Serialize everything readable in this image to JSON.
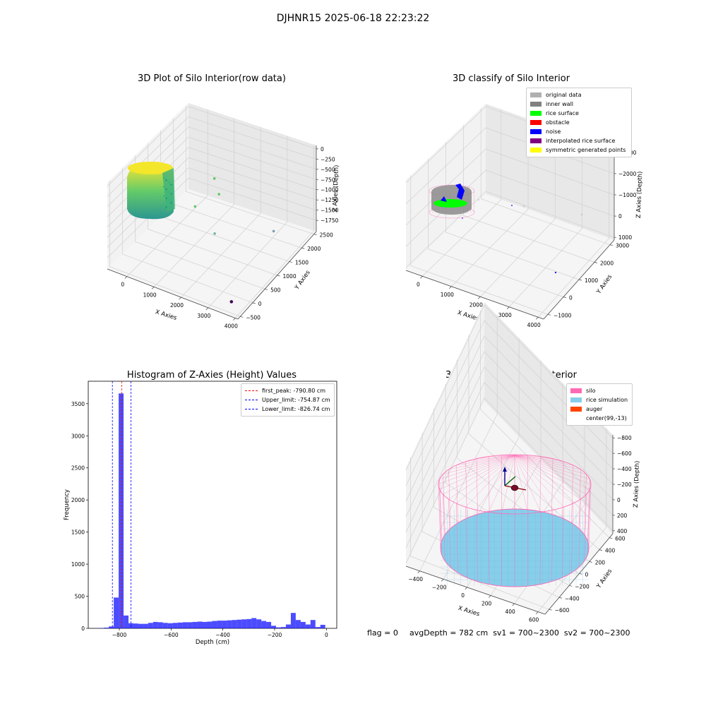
{
  "suptitle": "DJHNR15 2025-06-18 22:23:22",
  "footer": {
    "flag": "flag = 0",
    "avg": "avgDepth = 782 cm  sv1 = 700~2300  sv2 = 700~2300"
  },
  "chart_data": [
    {
      "type": "scatter",
      "title": "3D Plot of Silo Interior(row data)",
      "xlabel": "X Axies",
      "ylabel": "Y Axies",
      "zlabel": "Z Axies (Depth)",
      "xticks": [
        "0",
        "1000",
        "2000",
        "3000",
        "4000"
      ],
      "yticks": [
        "−500",
        "0",
        "500",
        "1000",
        "1500",
        "2000",
        "2500"
      ],
      "zticks": [
        "0",
        "−250",
        "−500",
        "−750",
        "−1000",
        "−1250",
        "−1500",
        "−1750"
      ],
      "colormap": [
        "#440154",
        "#21918c",
        "#5ec962",
        "#fde725"
      ],
      "points": [
        {
          "x": 3900,
          "y": -400,
          "z": -1750
        },
        {
          "x": 900,
          "y": 2400,
          "z": -1150
        },
        {
          "x": 1500,
          "y": 1900,
          "z": -1100
        },
        {
          "x": 2200,
          "y": 900,
          "z": -1300
        },
        {
          "x": 3500,
          "y": 1900,
          "z": -1550
        },
        {
          "x": 800,
          "y": 1700,
          "z": -1450
        }
      ]
    },
    {
      "type": "scatter",
      "title": "3D classify of Silo Interior",
      "xlabel": "X Axies",
      "ylabel": "Y Axies",
      "zlabel": "Z Axies (Depth)",
      "xticks": [
        "0",
        "1000",
        "2000",
        "3000",
        "4000"
      ],
      "yticks": [
        "−1000",
        "0",
        "1000",
        "2000",
        "3000"
      ],
      "zticks": [
        "1000",
        "0",
        "−1000",
        "−2000",
        "−3000"
      ],
      "legend": [
        {
          "label": "original data",
          "color": "#b0b0b0"
        },
        {
          "label": "inner wall",
          "color": "#808080"
        },
        {
          "label": "rice surface",
          "color": "#00ff00"
        },
        {
          "label": "obstacle",
          "color": "#ff0000"
        },
        {
          "label": "noise",
          "color": "#0000ff"
        },
        {
          "label": "interpolated rice surface",
          "color": "#800080"
        },
        {
          "label": "symmetric generated points",
          "color": "#ffff00"
        }
      ],
      "legend_loc": "upper right"
    },
    {
      "type": "bar",
      "title": "Histogram of Z-Axies (Height) Values",
      "xlabel": "Depth (cm)",
      "ylabel": "Frequency",
      "xlim": [
        -920,
        40
      ],
      "ylim": [
        0,
        3850
      ],
      "xticks": [
        -800,
        -600,
        -400,
        -200,
        0
      ],
      "yticks": [
        0,
        500,
        1000,
        1500,
        2000,
        2500,
        3000,
        3500
      ],
      "bar_color": "#0000ff",
      "bin_width": 19,
      "bins": [
        {
          "x": -869,
          "count": 5
        },
        {
          "x": -850,
          "count": 10
        },
        {
          "x": -831,
          "count": 30
        },
        {
          "x": -812,
          "count": 480
        },
        {
          "x": -793,
          "count": 3660
        },
        {
          "x": -774,
          "count": 200
        },
        {
          "x": -755,
          "count": 80
        },
        {
          "x": -736,
          "count": 75
        },
        {
          "x": -717,
          "count": 70
        },
        {
          "x": -698,
          "count": 70
        },
        {
          "x": -679,
          "count": 85
        },
        {
          "x": -660,
          "count": 100
        },
        {
          "x": -641,
          "count": 95
        },
        {
          "x": -622,
          "count": 85
        },
        {
          "x": -603,
          "count": 80
        },
        {
          "x": -584,
          "count": 85
        },
        {
          "x": -565,
          "count": 90
        },
        {
          "x": -546,
          "count": 95
        },
        {
          "x": -527,
          "count": 95
        },
        {
          "x": -508,
          "count": 100
        },
        {
          "x": -489,
          "count": 105
        },
        {
          "x": -470,
          "count": 100
        },
        {
          "x": -451,
          "count": 105
        },
        {
          "x": -432,
          "count": 115
        },
        {
          "x": -413,
          "count": 120
        },
        {
          "x": -394,
          "count": 120
        },
        {
          "x": -375,
          "count": 125
        },
        {
          "x": -356,
          "count": 130
        },
        {
          "x": -337,
          "count": 135
        },
        {
          "x": -318,
          "count": 140
        },
        {
          "x": -299,
          "count": 145
        },
        {
          "x": -280,
          "count": 160
        },
        {
          "x": -261,
          "count": 140
        },
        {
          "x": -242,
          "count": 115
        },
        {
          "x": -223,
          "count": 100
        },
        {
          "x": -204,
          "count": 40
        },
        {
          "x": -185,
          "count": 15
        },
        {
          "x": -166,
          "count": 20
        },
        {
          "x": -147,
          "count": 60
        },
        {
          "x": -128,
          "count": 240
        },
        {
          "x": -109,
          "count": 130
        },
        {
          "x": -90,
          "count": 100
        },
        {
          "x": -71,
          "count": 60
        },
        {
          "x": -52,
          "count": 130
        },
        {
          "x": -33,
          "count": 20
        },
        {
          "x": -14,
          "count": 55
        }
      ],
      "vlines": [
        {
          "label": "first_peak: -790.80 cm",
          "x": -790.8,
          "color": "#ff0000"
        },
        {
          "label": "Upper_limit: -754.87 cm",
          "x": -754.87,
          "color": "#0000ff"
        },
        {
          "label": "Lower_limit: -826.74 cm",
          "x": -826.74,
          "color": "#0000ff"
        }
      ],
      "legend_loc": "upper right"
    },
    {
      "type": "scatter",
      "title": "3D simulation of Silo Interior",
      "xlabel": "X Axies",
      "ylabel": "Y Axies",
      "zlabel": "Z Axies (Depth)",
      "xticks": [
        "−400",
        "−200",
        "0",
        "200",
        "400",
        "600"
      ],
      "yticks": [
        "−600",
        "−400",
        "−200",
        "0",
        "200",
        "400",
        "600"
      ],
      "zticks": [
        "400",
        "200",
        "0",
        "−200",
        "−400",
        "−600",
        "−800"
      ],
      "legend": [
        {
          "label": "silo",
          "color": "#ff69b4"
        },
        {
          "label": "rice simulation",
          "color": "#87ceeb"
        },
        {
          "label": "auger",
          "color": "#ff4500"
        },
        {
          "label": "center(99,-13)",
          "color": "#ffffff"
        }
      ],
      "legend_loc": "upper right"
    }
  ]
}
